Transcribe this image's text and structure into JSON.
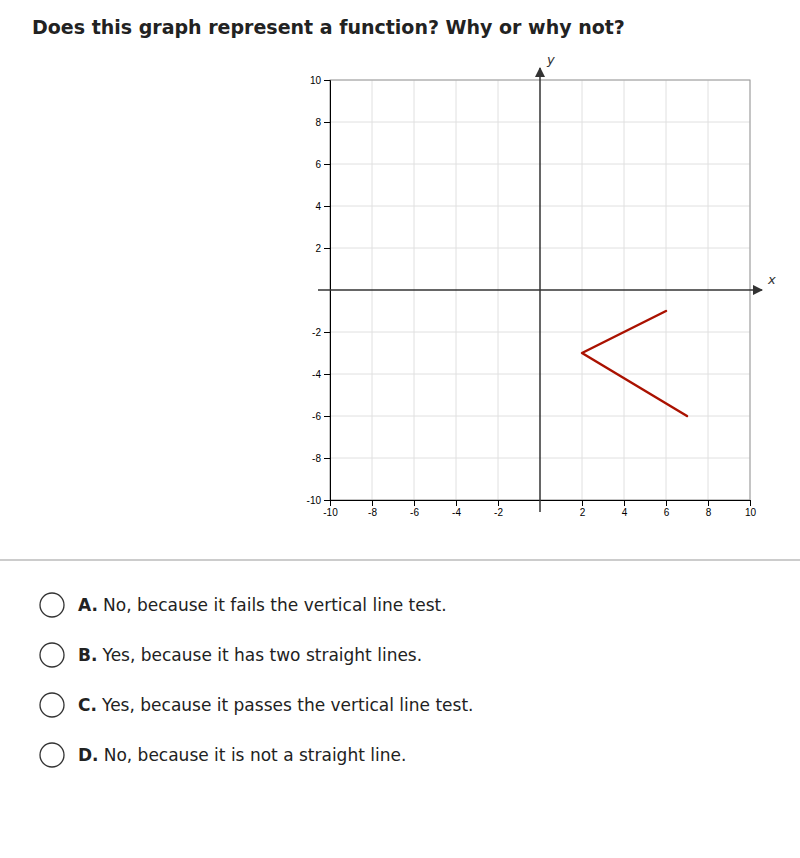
{
  "chart_data": {
    "type": "line",
    "title": "Does this graph represent a function? Why or why not?",
    "x_label": "x",
    "y_label": "y",
    "x": [
      6,
      2,
      7
    ],
    "values": [
      -1,
      -3,
      -6
    ],
    "color": "#aa1100",
    "xlim": [
      -10,
      10
    ],
    "ylim": [
      -10,
      10
    ],
    "xticks": [
      -10,
      -8,
      -6,
      -4,
      -2,
      2,
      4,
      6,
      8,
      10
    ],
    "yticks": [
      -10,
      -8,
      -6,
      -4,
      -2,
      2,
      4,
      6,
      8,
      10
    ],
    "grid": true,
    "annotations": [
      {
        "label": "A.",
        "text": "No, because it fails the vertical line test."
      },
      {
        "label": "B.",
        "text": "Yes, because it has two straight lines."
      },
      {
        "label": "C.",
        "text": "Yes, because it passes the vertical line test."
      },
      {
        "label": "D.",
        "text": "No, because it is not a straight line."
      }
    ]
  }
}
